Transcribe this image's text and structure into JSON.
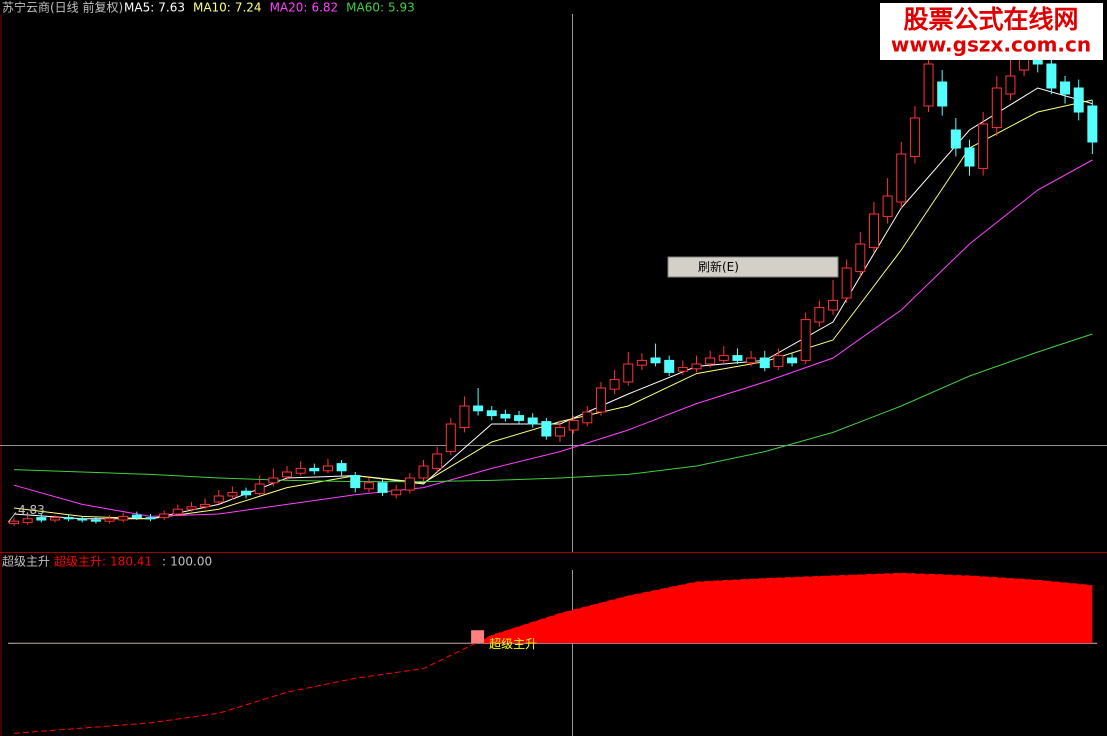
{
  "chart_data": [
    {
      "type": "candlestick",
      "title": "苏宁云商(日线 前复权)",
      "open": [
        4.72,
        4.73,
        4.77,
        4.75,
        4.77,
        4.76,
        4.75,
        4.74,
        4.75,
        4.79,
        4.77,
        4.77,
        4.8,
        4.84,
        4.86,
        4.9,
        4.95,
        4.99,
        4.97,
        5.06,
        5.11,
        5.14,
        5.18,
        5.16,
        5.22,
        5.12,
        5.01,
        5.06,
        4.96,
        5.0,
        5.1,
        5.18,
        5.32,
        5.52,
        5.7,
        5.66,
        5.63,
        5.62,
        5.6,
        5.57,
        5.45,
        5.5,
        5.56,
        5.65,
        5.84,
        5.9,
        6.04,
        6.1,
        6.08,
        5.99,
        6.01,
        6.05,
        6.08,
        6.12,
        6.06,
        6.1,
        6.03,
        6.1,
        6.08,
        6.4,
        6.5,
        6.6,
        6.82,
        7.02,
        7.28,
        7.4,
        7.78,
        8.2,
        8.4,
        8.0,
        7.85,
        7.68,
        8.02,
        8.3,
        8.5,
        8.7,
        8.55,
        8.4,
        8.35,
        8.2
      ],
      "high": [
        4.77,
        4.79,
        4.8,
        4.79,
        4.8,
        4.78,
        4.78,
        4.79,
        4.81,
        4.82,
        4.8,
        4.83,
        4.88,
        4.9,
        4.93,
        5.0,
        5.03,
        5.02,
        5.12,
        5.18,
        5.2,
        5.24,
        5.22,
        5.26,
        5.25,
        5.15,
        5.1,
        5.09,
        5.04,
        5.14,
        5.25,
        5.36,
        5.6,
        5.78,
        5.85,
        5.7,
        5.67,
        5.66,
        5.64,
        5.6,
        5.58,
        5.62,
        5.7,
        5.9,
        6.0,
        6.15,
        6.14,
        6.22,
        6.12,
        6.08,
        6.12,
        6.16,
        6.2,
        6.18,
        6.16,
        6.16,
        6.18,
        6.14,
        6.48,
        6.58,
        6.75,
        6.92,
        7.15,
        7.4,
        7.6,
        7.9,
        8.2,
        8.65,
        8.5,
        8.1,
        7.92,
        8.15,
        8.45,
        8.6,
        8.78,
        8.8,
        8.6,
        8.45,
        8.42,
        8.25
      ],
      "low": [
        4.7,
        4.71,
        4.73,
        4.73,
        4.74,
        4.73,
        4.72,
        4.72,
        4.73,
        4.75,
        4.74,
        4.75,
        4.78,
        4.82,
        4.84,
        4.88,
        4.92,
        4.93,
        4.95,
        5.03,
        5.08,
        5.12,
        5.13,
        5.14,
        5.12,
        4.98,
        4.98,
        4.95,
        4.93,
        4.97,
        5.07,
        5.15,
        5.29,
        5.48,
        5.62,
        5.58,
        5.57,
        5.55,
        5.52,
        5.42,
        5.4,
        5.47,
        5.53,
        5.62,
        5.8,
        5.87,
        6.0,
        6.03,
        5.95,
        5.96,
        5.98,
        6.02,
        6.05,
        6.05,
        6.03,
        5.99,
        6.0,
        6.03,
        6.05,
        6.36,
        6.46,
        6.56,
        6.78,
        6.98,
        7.22,
        7.35,
        7.72,
        8.15,
        8.12,
        7.78,
        7.62,
        7.62,
        7.95,
        8.25,
        8.45,
        8.48,
        8.3,
        8.22,
        8.08,
        7.8
      ],
      "close": [
        4.74,
        4.76,
        4.75,
        4.77,
        4.76,
        4.75,
        4.74,
        4.76,
        4.78,
        4.77,
        4.76,
        4.8,
        4.84,
        4.86,
        4.88,
        4.95,
        4.98,
        4.96,
        5.05,
        5.1,
        5.15,
        5.18,
        5.16,
        5.2,
        5.16,
        5.02,
        5.06,
        4.98,
        5.0,
        5.1,
        5.2,
        5.3,
        5.55,
        5.7,
        5.66,
        5.62,
        5.6,
        5.58,
        5.55,
        5.45,
        5.52,
        5.58,
        5.65,
        5.85,
        5.92,
        6.05,
        6.08,
        6.06,
        5.98,
        6.02,
        6.05,
        6.1,
        6.12,
        6.08,
        6.1,
        6.02,
        6.12,
        6.06,
        6.42,
        6.52,
        6.58,
        6.85,
        7.05,
        7.3,
        7.45,
        7.8,
        8.1,
        8.55,
        8.2,
        7.85,
        7.7,
        8.05,
        8.35,
        8.45,
        8.65,
        8.55,
        8.35,
        8.3,
        8.15,
        7.9
      ],
      "up_color": "#ff3232",
      "down_color": "#54ffff",
      "ylim": [
        4.5,
        9.0
      ],
      "low_label": 4.83,
      "lines_x": [
        0,
        5,
        10,
        15,
        20,
        25,
        30,
        35,
        40,
        45,
        50,
        55,
        60,
        65,
        70,
        75,
        79
      ],
      "series": [
        {
          "name": "MA5:",
          "cursor_value": 7.63,
          "color": "#ffffff",
          "values": [
            4.8,
            4.76,
            4.76,
            4.88,
            5.1,
            5.12,
            5.05,
            5.55,
            5.55,
            5.8,
            6.03,
            6.08,
            6.4,
            7.35,
            8.0,
            8.35,
            8.22
          ]
        },
        {
          "name": "MA10:",
          "cursor_value": 7.24,
          "color": "#ffff80",
          "values": [
            4.85,
            4.78,
            4.76,
            4.84,
            5.02,
            5.12,
            5.06,
            5.4,
            5.57,
            5.7,
            5.97,
            6.07,
            6.25,
            7.0,
            7.85,
            8.15,
            8.25
          ]
        },
        {
          "name": "MA20:",
          "cursor_value": 6.82,
          "color": "#ff40ff",
          "values": [
            5.04,
            4.88,
            4.78,
            4.8,
            4.88,
            4.96,
            5.02,
            5.18,
            5.32,
            5.5,
            5.72,
            5.9,
            6.1,
            6.5,
            7.05,
            7.5,
            7.75
          ]
        },
        {
          "name": "MA60:",
          "cursor_value": 5.93,
          "color": "#40d040",
          "values": [
            5.17,
            5.15,
            5.13,
            5.1,
            5.08,
            5.07,
            5.07,
            5.08,
            5.1,
            5.13,
            5.2,
            5.32,
            5.48,
            5.7,
            5.95,
            6.15,
            6.3
          ]
        }
      ]
    },
    {
      "type": "area",
      "title": "超级主升",
      "x": [
        0,
        5,
        10,
        15,
        20,
        25,
        30,
        35,
        40,
        45,
        50,
        55,
        60,
        65,
        70,
        75,
        79
      ],
      "series": [
        {
          "name": "超级主升:",
          "cursor_value": 180.41,
          "color": "#ff0000",
          "values": [
            -3,
            3,
            9,
            20,
            44,
            60,
            71,
            109,
            134,
            154,
            170,
            174,
            177,
            180,
            177,
            172,
            166
          ]
        }
      ],
      "reference": {
        "name": ":",
        "value": {
          "value": 100,
          "label": "100.00"
        }
      },
      "signal": {
        "text": "超级主升",
        "x": 34
      },
      "ylim": [
        -6,
        186
      ]
    }
  ],
  "watermark": {
    "title": "股票公式在线网",
    "url": "www.gszx.com.cn"
  },
  "context_menu": {
    "items": [
      "刷新(E)"
    ]
  }
}
